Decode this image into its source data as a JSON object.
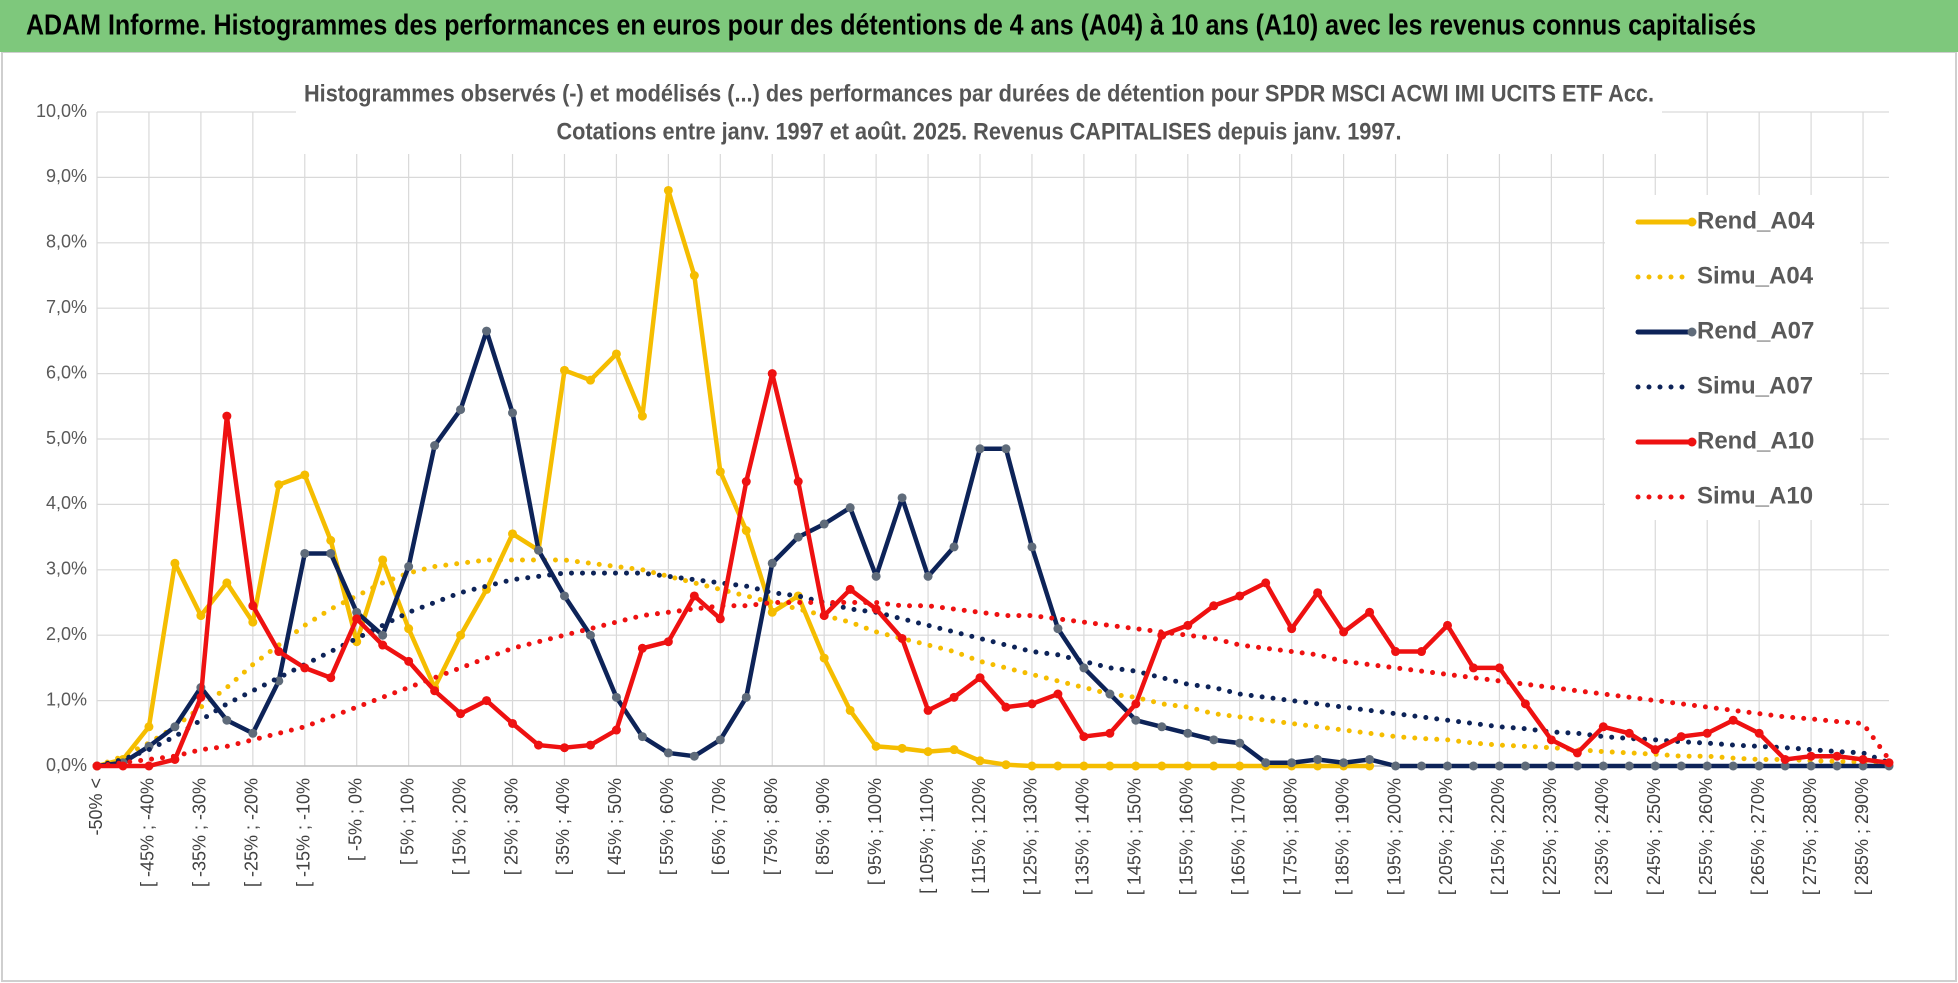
{
  "header": {
    "title": "ADAM Informe. Histogrammes des performances en euros pour des détentions de 4 ans (A04) à 10 ans (A10) avec les revenus connus capitalisés"
  },
  "chart_data": {
    "type": "line",
    "title": "Histogrammes observés (-) et modélisés (...) des performances par durées de détention pour SPDR MSCI ACWI IMI UCITS ETF Acc.",
    "subtitle": "Cotations entre janv. 1997 et août. 2025. Revenus CAPITALISES depuis janv. 1997.",
    "categories": [
      "-50% <",
      null,
      "[ -45% ; -40%",
      null,
      "[ -35% ; -30%",
      null,
      "[ -25% ; -20%",
      null,
      "[ -15% ; -10%",
      null,
      "[ -5% ; 0%",
      null,
      "[ 5% ; 10%",
      null,
      "[ 15% ; 20%",
      null,
      "[ 25% ; 30%",
      null,
      "[ 35% ; 40%",
      null,
      "[ 45% ; 50%",
      null,
      "[ 55% ; 60%",
      null,
      "[ 65% ; 70%",
      null,
      "[ 75% ; 80%",
      null,
      "[ 85% ; 90%",
      null,
      "[ 95% ; 100%",
      null,
      "[ 105% ; 110%",
      null,
      "[ 115% ; 120%",
      null,
      "[ 125% ; 130%",
      null,
      "[ 135% ; 140%",
      null,
      "[ 145% ; 150%",
      null,
      "[ 155% ; 160%",
      null,
      "[ 165% ; 170%",
      null,
      "[ 175% ; 180%",
      null,
      "[ 185% ; 190%",
      null,
      "[ 195% ; 200%",
      null,
      "[ 205% ; 210%",
      null,
      "[ 215% ; 220%",
      null,
      "[ 225% ; 230%",
      null,
      "[ 235% ; 240%",
      null,
      "[ 245% ; 250%",
      null,
      "[ 255% ; 260%",
      null,
      "[ 265% ; 270%",
      null,
      "[ 275% ; 280%",
      null,
      "[ 285% ; 290%",
      null
    ],
    "ylim": [
      0,
      10
    ],
    "yticks": [
      {
        "value": 0,
        "label": "0,0%"
      },
      {
        "value": 1,
        "label": "1,0%"
      },
      {
        "value": 2,
        "label": "2,0%"
      },
      {
        "value": 3,
        "label": "3,0%"
      },
      {
        "value": 4,
        "label": "4,0%"
      },
      {
        "value": 5,
        "label": "5,0%"
      },
      {
        "value": 6,
        "label": "6,0%"
      },
      {
        "value": 7,
        "label": "7,0%"
      },
      {
        "value": 8,
        "label": "8,0%"
      },
      {
        "value": 9,
        "label": "9,0%"
      },
      {
        "value": 10,
        "label": "10,0%"
      }
    ],
    "grid": true,
    "legend": "right",
    "series": [
      {
        "name": "Rend_A04",
        "color": "#f5bd00",
        "style": "solid",
        "markers": true,
        "marker_color": "#f5bd00",
        "values": [
          0,
          0.1,
          0.6,
          3.1,
          2.3,
          2.8,
          2.2,
          4.3,
          4.45,
          3.45,
          1.9,
          3.15,
          2.1,
          1.2,
          2.0,
          2.7,
          3.55,
          3.3,
          6.05,
          5.9,
          6.3,
          5.35,
          8.8,
          7.5,
          4.5,
          3.6,
          2.35,
          2.6,
          1.65,
          0.85,
          0.3,
          0.27,
          0.22,
          0.25,
          0.08,
          0.02,
          0,
          0,
          0,
          0,
          0,
          0,
          0,
          0,
          0,
          0,
          0,
          0,
          0,
          0,
          null,
          null,
          null,
          null,
          null,
          null,
          null,
          null,
          null,
          null,
          null,
          null,
          null,
          null,
          null,
          null,
          null,
          null,
          null,
          null
        ]
      },
      {
        "name": "Simu_A04",
        "color": "#f5bd00",
        "style": "dotted",
        "markers": false,
        "values": [
          0,
          0.15,
          0.35,
          0.6,
          0.9,
          1.2,
          1.55,
          1.85,
          2.15,
          2.4,
          2.6,
          2.8,
          2.95,
          3.05,
          3.1,
          3.15,
          3.15,
          3.15,
          3.15,
          3.1,
          3.05,
          3.0,
          2.9,
          2.8,
          2.7,
          2.6,
          2.5,
          2.4,
          2.3,
          2.2,
          2.05,
          1.95,
          1.85,
          1.75,
          1.6,
          1.5,
          1.4,
          1.3,
          1.2,
          1.1,
          1.05,
          0.95,
          0.9,
          0.8,
          0.75,
          0.7,
          0.65,
          0.6,
          0.55,
          0.5,
          0.45,
          0.42,
          0.4,
          0.35,
          0.32,
          0.3,
          0.28,
          0.25,
          0.22,
          0.2,
          0.18,
          0.15,
          0.15,
          0.12,
          0.1,
          0.1,
          0.08,
          0.07,
          0.06,
          0.05
        ]
      },
      {
        "name": "Rend_A07",
        "color": "#0d2358",
        "style": "solid",
        "markers": true,
        "marker_color": "#5f6b7a",
        "values": [
          0,
          0.05,
          0.3,
          0.6,
          1.2,
          0.7,
          0.5,
          1.3,
          3.25,
          3.25,
          2.35,
          2.0,
          3.05,
          4.9,
          5.45,
          6.65,
          5.4,
          3.3,
          2.6,
          2.0,
          1.05,
          0.45,
          0.2,
          0.15,
          0.4,
          1.05,
          3.1,
          3.5,
          3.7,
          3.95,
          2.9,
          4.1,
          2.9,
          3.35,
          4.85,
          4.85,
          3.35,
          2.1,
          1.5,
          1.1,
          0.7,
          0.6,
          0.5,
          0.4,
          0.35,
          0.05,
          0.05,
          0.1,
          0.05,
          0.1,
          0,
          0,
          0,
          0,
          0,
          0,
          0,
          0,
          0,
          0,
          0,
          0,
          0,
          0,
          0,
          0,
          0,
          0,
          0,
          0
        ]
      },
      {
        "name": "Simu_A07",
        "color": "#0d2358",
        "style": "dotted",
        "markers": false,
        "values": [
          0,
          0.1,
          0.25,
          0.45,
          0.7,
          0.95,
          1.15,
          1.35,
          1.55,
          1.75,
          1.95,
          2.15,
          2.35,
          2.5,
          2.65,
          2.75,
          2.85,
          2.9,
          2.95,
          2.95,
          2.95,
          2.95,
          2.9,
          2.85,
          2.8,
          2.75,
          2.65,
          2.6,
          2.5,
          2.4,
          2.35,
          2.25,
          2.15,
          2.05,
          1.95,
          1.85,
          1.75,
          1.7,
          1.6,
          1.5,
          1.45,
          1.35,
          1.25,
          1.2,
          1.1,
          1.05,
          1.0,
          0.95,
          0.9,
          0.85,
          0.8,
          0.75,
          0.7,
          0.65,
          0.6,
          0.57,
          0.52,
          0.5,
          0.45,
          0.42,
          0.4,
          0.37,
          0.35,
          0.32,
          0.3,
          0.28,
          0.25,
          0.22,
          0.2,
          0.05
        ]
      },
      {
        "name": "Rend_A10",
        "color": "#ee1111",
        "style": "solid",
        "markers": true,
        "marker_color": "#ee1111",
        "values": [
          0,
          0,
          0,
          0.1,
          1.05,
          5.35,
          2.45,
          1.75,
          1.5,
          1.35,
          2.25,
          1.85,
          1.6,
          1.15,
          0.8,
          1.0,
          0.65,
          0.32,
          0.28,
          0.32,
          0.55,
          1.8,
          1.9,
          2.6,
          2.25,
          4.35,
          6.0,
          4.35,
          2.3,
          2.7,
          2.4,
          1.95,
          0.85,
          1.05,
          1.35,
          0.9,
          0.95,
          1.1,
          0.45,
          0.5,
          0.95,
          2.0,
          2.15,
          2.45,
          2.6,
          2.8,
          2.1,
          2.65,
          2.05,
          2.35,
          1.75,
          1.75,
          2.15,
          1.5,
          1.5,
          0.95,
          0.4,
          0.2,
          0.6,
          0.5,
          0.25,
          0.45,
          0.5,
          0.7,
          0.5,
          0.1,
          0.15,
          0.15,
          0.1,
          0.05
        ]
      },
      {
        "name": "Simu_A10",
        "color": "#ee1111",
        "style": "dotted",
        "markers": false,
        "values": [
          0,
          0.05,
          0.1,
          0.15,
          0.25,
          0.3,
          0.4,
          0.5,
          0.6,
          0.75,
          0.9,
          1.05,
          1.2,
          1.35,
          1.5,
          1.65,
          1.8,
          1.9,
          2.0,
          2.1,
          2.2,
          2.3,
          2.35,
          2.4,
          2.45,
          2.45,
          2.5,
          2.5,
          2.5,
          2.5,
          2.5,
          2.45,
          2.45,
          2.4,
          2.35,
          2.3,
          2.3,
          2.25,
          2.2,
          2.15,
          2.1,
          2.05,
          2.0,
          1.95,
          1.85,
          1.8,
          1.75,
          1.7,
          1.6,
          1.55,
          1.5,
          1.45,
          1.4,
          1.35,
          1.3,
          1.25,
          1.2,
          1.15,
          1.1,
          1.05,
          1.0,
          0.95,
          0.9,
          0.85,
          0.8,
          0.75,
          0.72,
          0.68,
          0.65,
          0.1
        ]
      }
    ]
  }
}
